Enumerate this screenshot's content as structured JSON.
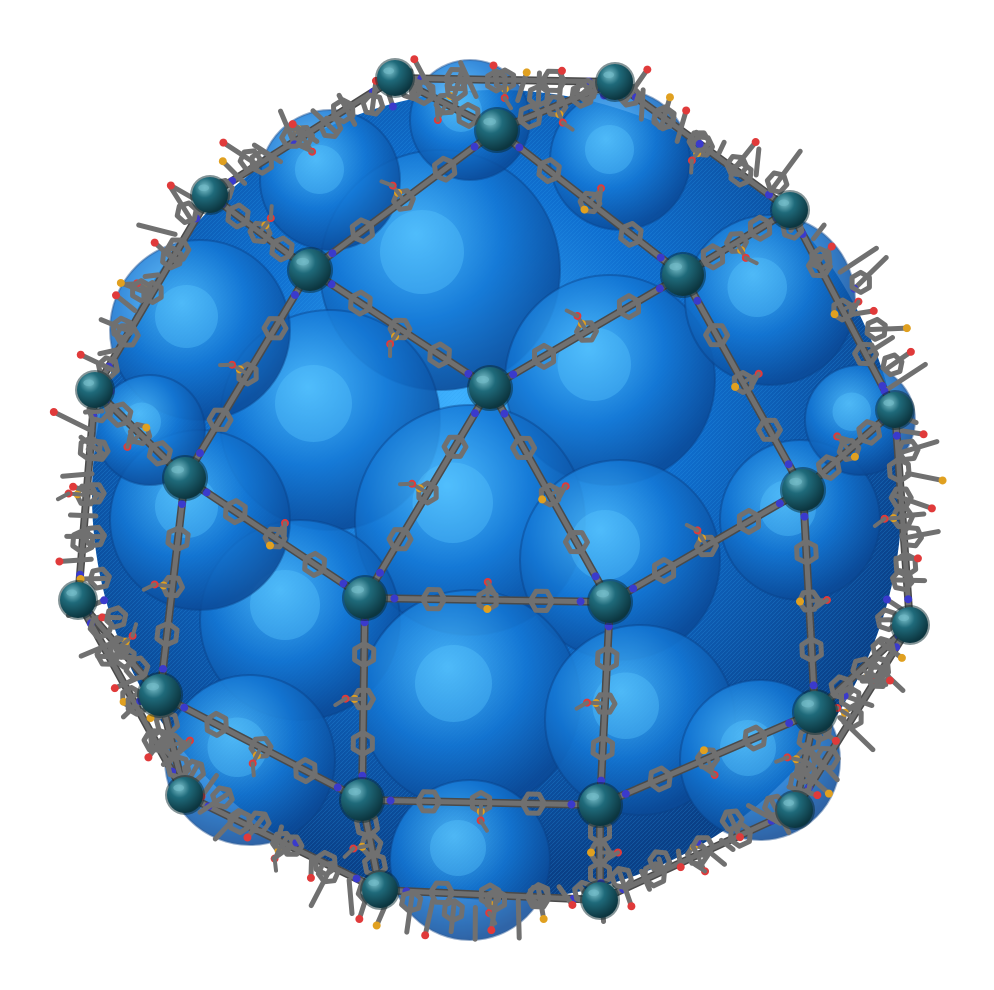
{
  "image": {
    "subject": "molecular-cage-rendering",
    "colors": {
      "surface_dark": "#0a4fa0",
      "surface_mid": "#0f6fd0",
      "surface_light": "#3fb2ff",
      "metal_node": "#1c5e6e",
      "metal_highlight": "#6fb8c4",
      "carbon": "#707070",
      "carbon_dark": "#4a4a4a",
      "nitrogen": "#3a3acc",
      "oxygen": "#e03a3a",
      "sulfur": "#e0a020",
      "background": "#ffffff"
    }
  }
}
